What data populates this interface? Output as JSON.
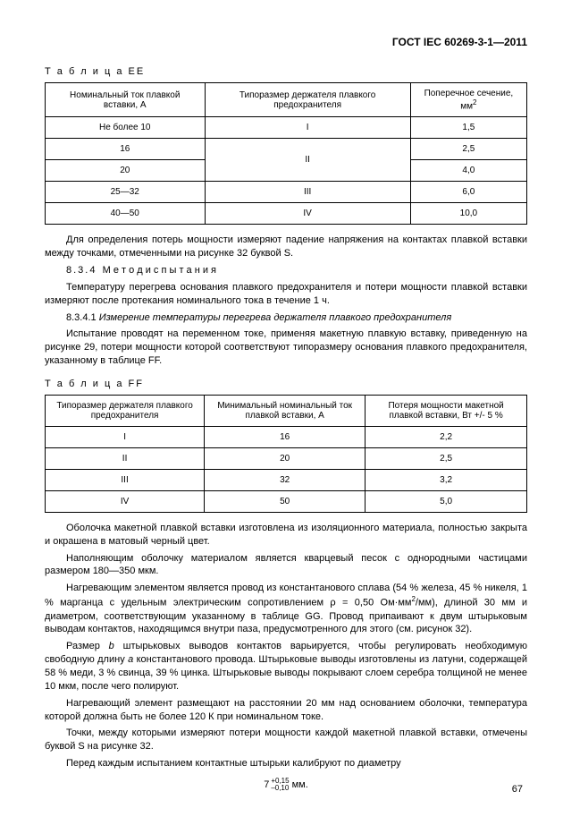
{
  "doc_header": "ГОСТ IEC 60269-3-1—2011",
  "table_ee": {
    "label": "Т а б л и ц а  EE",
    "headers": [
      "Номинальный ток плавкой вставки, А",
      "Типоразмер держателя плавкого предохранителя",
      "Поперечное сечение, мм"
    ],
    "header_sup": "2",
    "rows": [
      {
        "c1": "Не более 10",
        "c2": "I",
        "c3": "1,5",
        "c2_rowspan": 1
      },
      {
        "c1": "16",
        "c2": "II",
        "c3": "2,5",
        "c2_rowspan": 2
      },
      {
        "c1": "20",
        "c2": "",
        "c3": "4,0",
        "c2_rowspan": 0
      },
      {
        "c1": "25—32",
        "c2": "III",
        "c3": "6,0",
        "c2_rowspan": 1
      },
      {
        "c1": "40—50",
        "c2": "IV",
        "c3": "10,0",
        "c2_rowspan": 1
      }
    ]
  },
  "p1": "Для определения потерь мощности измеряют падение напряжения на контактах плавкой вставки между точками, отмеченными на рисунке 32 буквой S.",
  "p2_num": "8.3.4",
  "p2_title": "М е т о д  и с п ы т а н и я",
  "p3": "Температуру перегрева основания плавкого предохранителя и потери мощности плавкой вставки измеряют после протекания номинального тока в течение 1 ч.",
  "p4_num": "8.3.4.1",
  "p4_title": "Измерение температуры перегрева держателя плавкого предохранителя",
  "p5": "Испытание проводят на переменном токе, применяя макетную плавкую вставку, приведенную на рисунке 29, потери мощности которой соответствуют типоразмеру основания плавкого предохранителя, указанному в таблице FF.",
  "table_ff": {
    "label": "Т а б л и ц а  FF",
    "headers": [
      "Типоразмер держателя плавкого предохранителя",
      "Минимальный номинальный ток плавкой вставки, А",
      "Потеря мощности макетной плавкой вставки, Вт +/- 5 %"
    ],
    "rows": [
      {
        "c1": "I",
        "c2": "16",
        "c3": "2,2"
      },
      {
        "c1": "II",
        "c2": "20",
        "c3": "2,5"
      },
      {
        "c1": "III",
        "c2": "32",
        "c3": "3,2"
      },
      {
        "c1": "IV",
        "c2": "50",
        "c3": "5,0"
      }
    ]
  },
  "p6": "Оболочка макетной плавкой вставки изготовлена из изоляционного материала, полностью закрыта и окрашена в матовый черный цвет.",
  "p7": "Наполняющим оболочку материалом является кварцевый песок с однородными частицами размером 180—350 мкм.",
  "p8a": "Нагревающим элементом является провод из константанового сплава (54 % железа, 45 % никеля, 1 % марганца с удельным электрическим сопротивлением ρ = 0,50 Ом·мм",
  "p8b": "/мм), длиной 30 мм и диаметром, соответствующим указанному в таблице GG. Провод припаивают к двум штырьковым выводам контактов, находящимся внутри паза, предусмотренного для этого (см. рисунок 32).",
  "p9a": "Размер ",
  "p9b": "b",
  "p9c": " штырьковых выводов контактов варьируется, чтобы регулировать необходимую свободную длину ",
  "p9d": "a",
  "p9e": " константанового провода. Штырьковые выводы изготовлены из латуни, содержащей 58 % меди, 3 % свинца, 39 % цинка. Штырьковые выводы покрывают слоем серебра толщиной не менее 10 мкм, после чего полируют.",
  "p10": "Нагревающий элемент размещают на расстоянии 20 мм над основанием оболочки, температура которой должна быть не более 120 К при номинальном токе.",
  "p11": "Точки, между которыми измеряют потери мощности каждой макетной плавкой вставки, отмечены буквой S на рисунке 32.",
  "p12": "Перед каждым испытанием контактные штырьки калибруют по диаметру",
  "formula_base": "7",
  "formula_up": "+0,15",
  "formula_dn": "–0,10",
  "formula_unit": " мм.",
  "page_num": "67"
}
